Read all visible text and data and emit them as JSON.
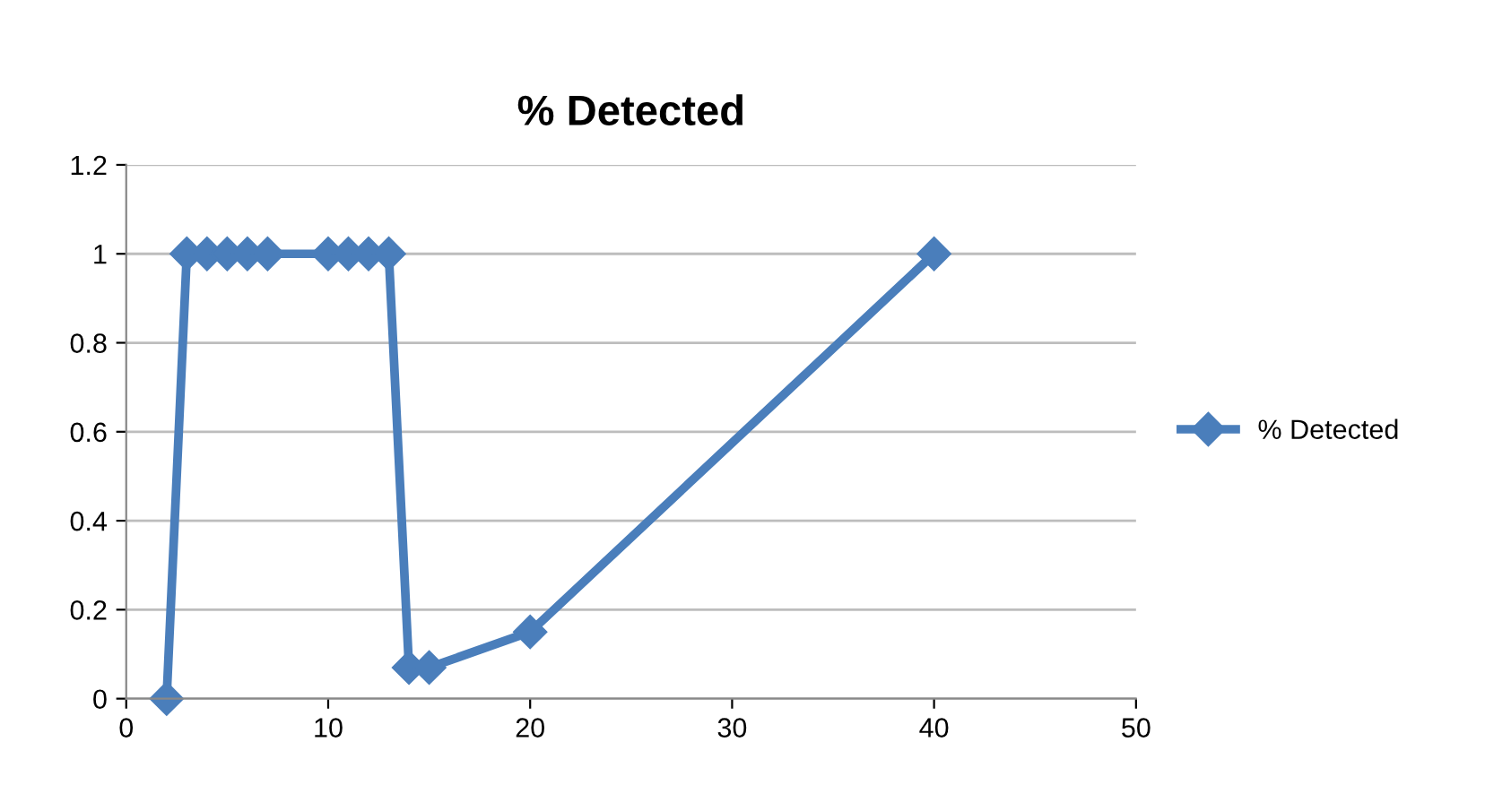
{
  "chart_data": {
    "type": "line",
    "title": "% Detected",
    "x": [
      2,
      3,
      4,
      5,
      6,
      7,
      10,
      11,
      12,
      13,
      14,
      15,
      20,
      40
    ],
    "series": [
      {
        "name": "% Detected",
        "color": "#4a7ebb",
        "values": [
          0,
          1,
          1,
          1,
          1,
          1,
          1,
          1,
          1,
          1,
          0.07,
          0.07,
          0.15,
          1
        ]
      }
    ],
    "xlim": [
      0,
      50
    ],
    "xticks": [
      0,
      10,
      20,
      30,
      40,
      50
    ],
    "ylim": [
      0,
      1.2
    ],
    "yticks": [
      0,
      0.2,
      0.4,
      0.6,
      0.8,
      1,
      1.2
    ],
    "grid": "y",
    "legend": "right",
    "marker": "diamond",
    "line_style": "solid"
  }
}
